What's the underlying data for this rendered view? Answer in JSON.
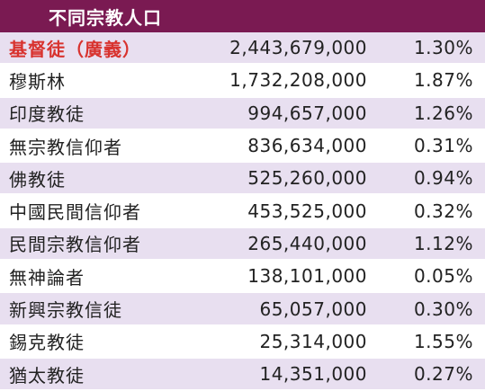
{
  "header": {
    "title": "不同宗教人口"
  },
  "colors": {
    "header_bg": "#7a1a52",
    "row_stripe": "#e8dff0",
    "highlight_text": "#d8322e"
  },
  "rows": [
    {
      "name": "基督徒（廣義）",
      "population": "2,443,679,000",
      "percent": "1.30%"
    },
    {
      "name": "穆斯林",
      "population": "1,732,208,000",
      "percent": "1.87%"
    },
    {
      "name": "印度教徒",
      "population": "994,657,000",
      "percent": "1.26%"
    },
    {
      "name": "無宗教信仰者",
      "population": "836,634,000",
      "percent": "0.31%"
    },
    {
      "name": "佛教徒",
      "population": "525,260,000",
      "percent": "0.94%"
    },
    {
      "name": "中國民間信仰者",
      "population": "453,525,000",
      "percent": "0.32%"
    },
    {
      "name": "民間宗教信仰者",
      "population": "265,440,000",
      "percent": "1.12%"
    },
    {
      "name": "無神論者",
      "population": "138,101,000",
      "percent": "0.05%"
    },
    {
      "name": "新興宗教信徒",
      "population": "65,057,000",
      "percent": "0.30%"
    },
    {
      "name": "錫克教徒",
      "population": "25,314,000",
      "percent": "1.55%"
    },
    {
      "name": "猶太教徒",
      "population": "14,351,000",
      "percent": "0.27%"
    }
  ]
}
